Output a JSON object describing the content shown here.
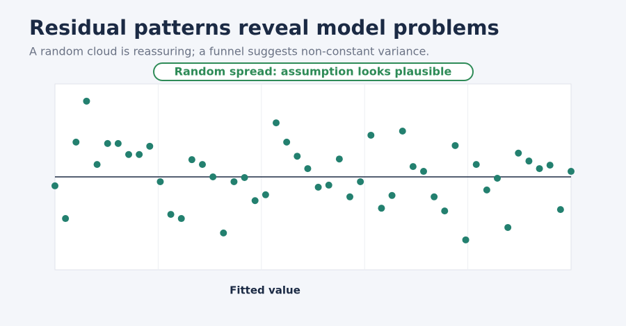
{
  "chart_data": {
    "type": "scatter",
    "title": "Residual patterns reveal model problems",
    "subtitle": "A random cloud is reassuring; a funnel suggests non-constant variance.",
    "annotation": "Random spread: assumption looks plausible",
    "xlabel": "Fitted value",
    "x": [
      0,
      1,
      2,
      3,
      4,
      5,
      6,
      7,
      8,
      9,
      10,
      11,
      12,
      13,
      14,
      15,
      16,
      17,
      18,
      19,
      20,
      21,
      22,
      23,
      24,
      25,
      26,
      27,
      28,
      29,
      30,
      31,
      32,
      33,
      34,
      35,
      36,
      37,
      38,
      39,
      40,
      41,
      42,
      43,
      44,
      45,
      46,
      47,
      48,
      49
    ],
    "values": [
      -0.26,
      -1.21,
      1.01,
      2.2,
      0.36,
      0.97,
      0.97,
      0.65,
      0.65,
      0.89,
      -0.14,
      -1.09,
      -1.21,
      0.5,
      0.36,
      0,
      -1.63,
      -0.14,
      -0.02,
      -0.69,
      -0.52,
      1.57,
      1.01,
      0.6,
      0.24,
      -0.3,
      -0.24,
      0.52,
      -0.58,
      -0.14,
      1.21,
      -0.91,
      -0.54,
      1.33,
      0.3,
      0.16,
      -0.58,
      -0.99,
      0.91,
      -1.83,
      0.36,
      -0.38,
      -0.04,
      -1.47,
      0.69,
      0.46,
      0.24,
      0.34,
      -0.95,
      0.16
    ],
    "color": "#23806f",
    "xlim": [
      0,
      49
    ],
    "ylim": [
      -2.7,
      2.7
    ],
    "xticks": [
      9.8,
      19.6,
      29.4,
      39.2
    ],
    "reference_line": 0,
    "grid": true
  }
}
